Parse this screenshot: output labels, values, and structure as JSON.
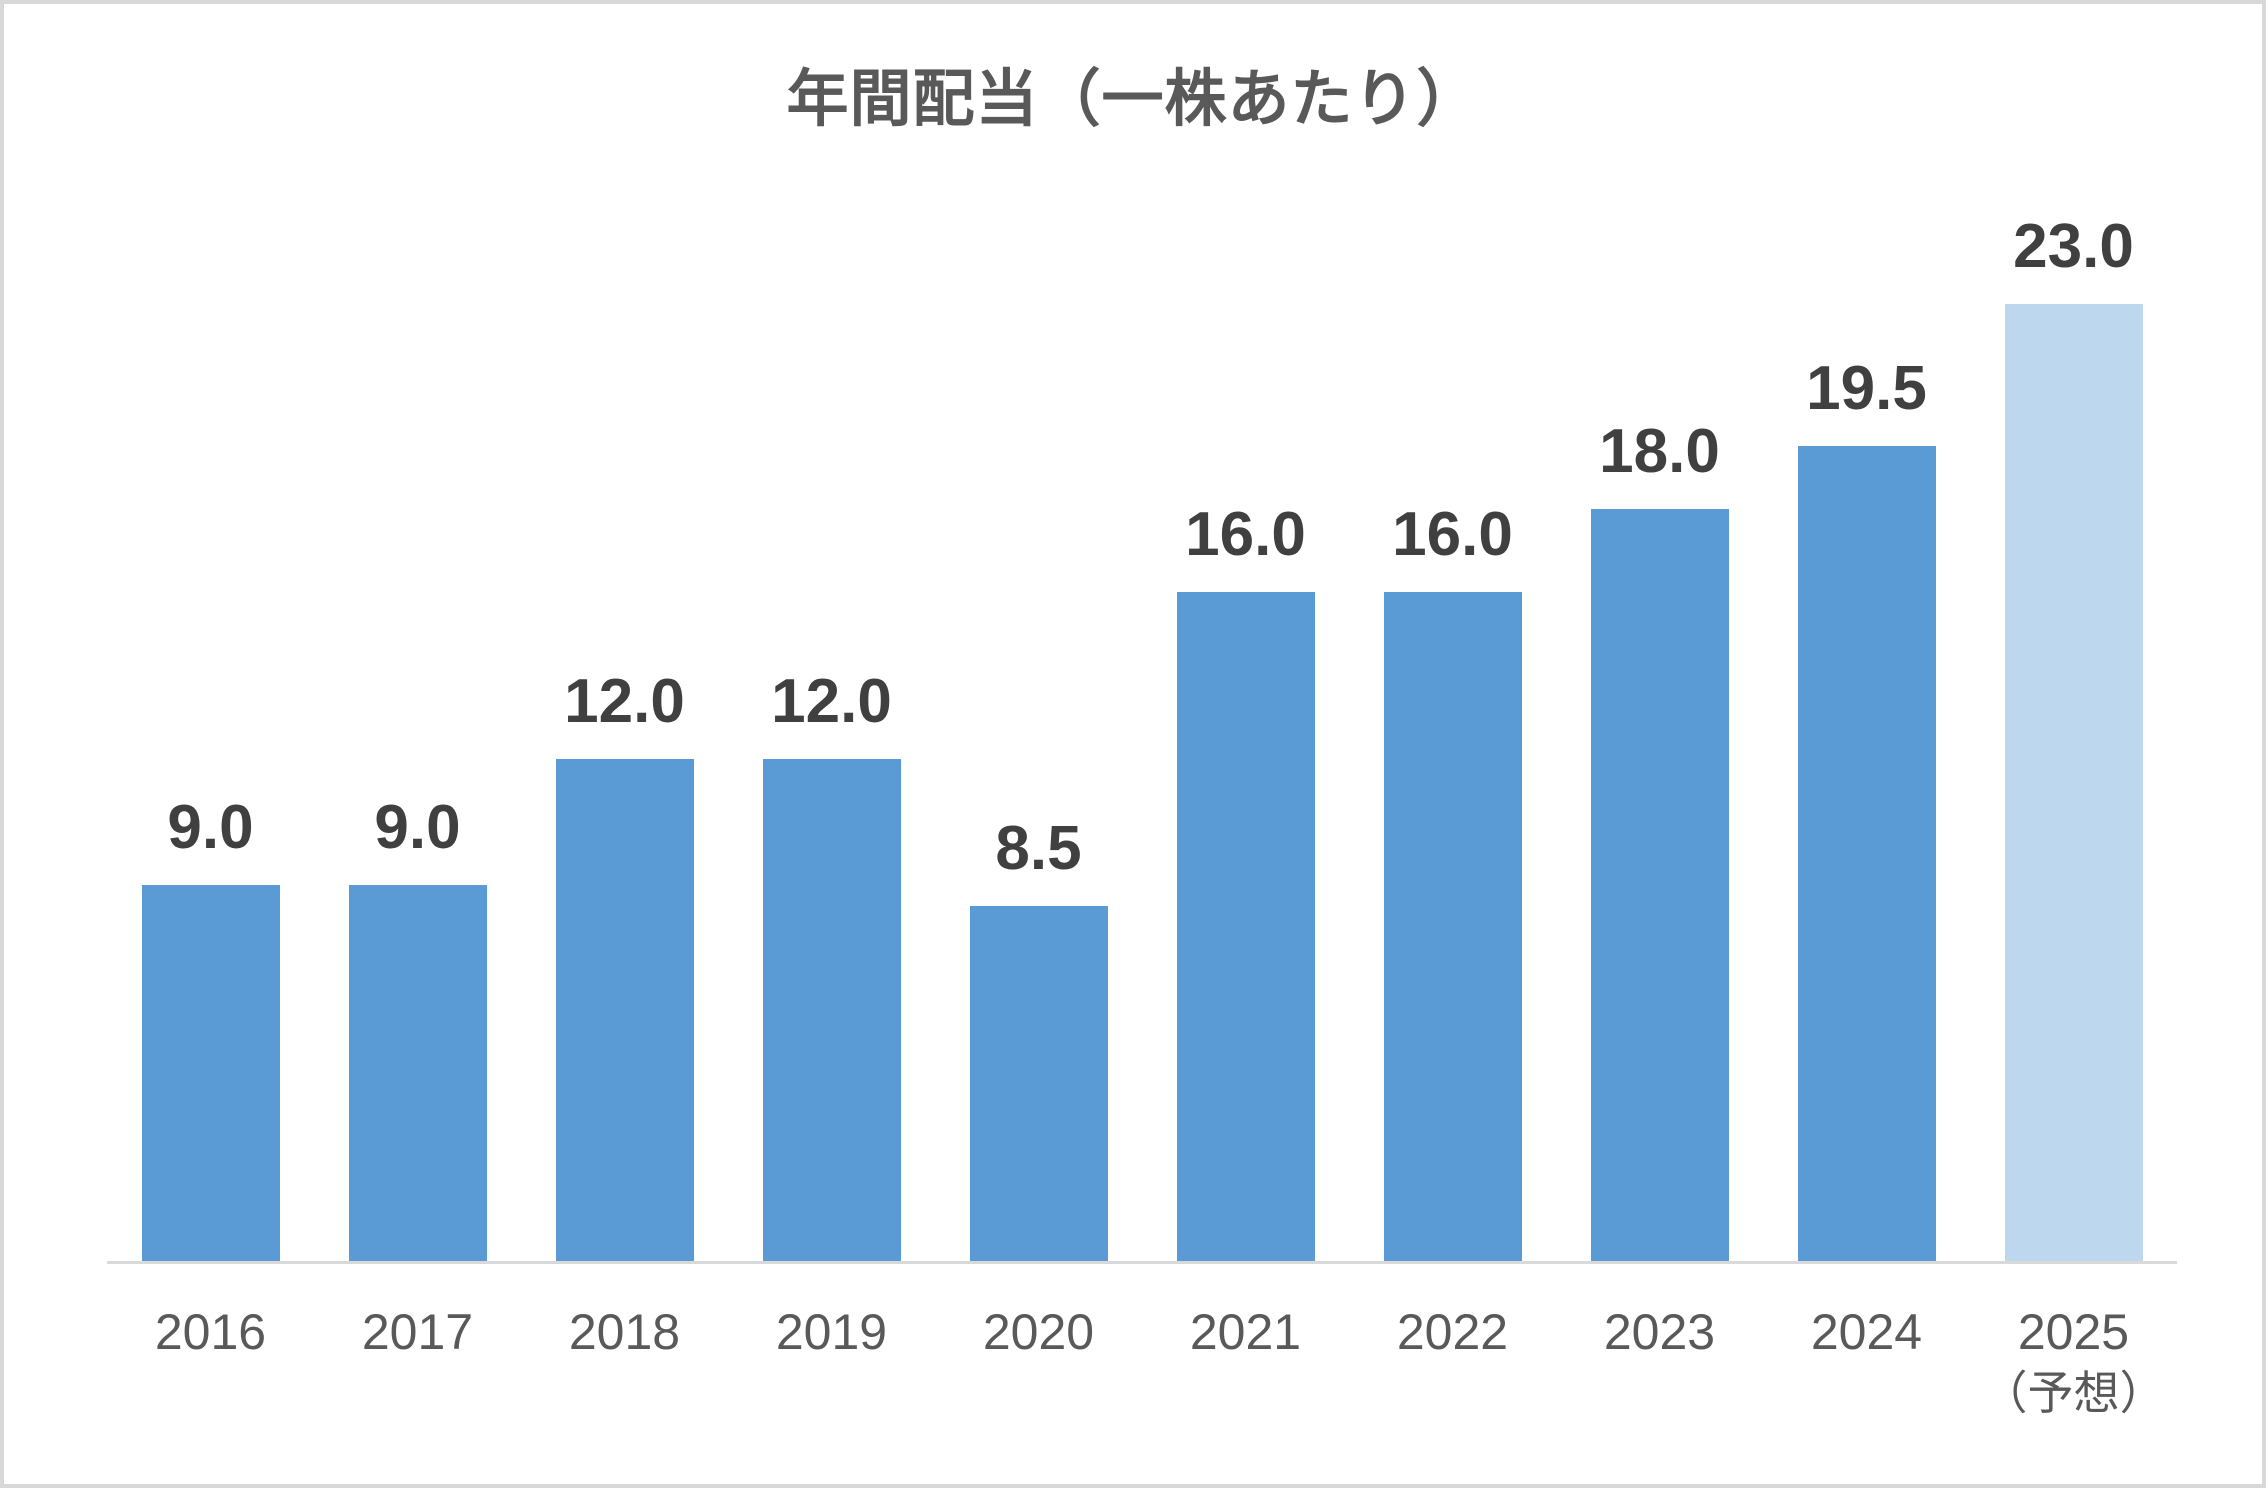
{
  "chart_data": {
    "type": "bar",
    "title": "年間配当（一株あたり）",
    "categories": [
      "2016",
      "2017",
      "2018",
      "2019",
      "2020",
      "2021",
      "2022",
      "2023",
      "2024",
      "2025"
    ],
    "category_notes": [
      "",
      "",
      "",
      "",
      "",
      "",
      "",
      "",
      "",
      "（予想）"
    ],
    "values": [
      9.0,
      9.0,
      12.0,
      12.0,
      8.5,
      16.0,
      16.0,
      18.0,
      19.5,
      23.0
    ],
    "value_labels": [
      "9.0",
      "9.0",
      "12.0",
      "12.0",
      "8.5",
      "16.0",
      "16.0",
      "18.0",
      "19.5",
      "23.0"
    ],
    "forecast_indices": [
      9
    ],
    "bar_colors": {
      "default": "#5B9BD5",
      "forecast": "#BDD7EE"
    },
    "ylim": [
      0,
      25
    ],
    "grid": false,
    "legend": false,
    "xlabel": "",
    "ylabel": ""
  },
  "colors": {
    "background": "#FFFFFF",
    "frame_border": "#D8D8D8",
    "title_text": "#595959",
    "value_label_text": "#404040",
    "axis_label_text": "#595959",
    "axis_line": "#D9D9D9"
  }
}
